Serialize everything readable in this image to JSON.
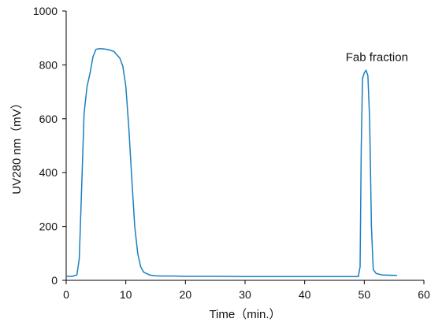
{
  "chart_data": {
    "type": "line",
    "xlabel": "Time（min.）",
    "ylabel": "UV280 nm（mV）",
    "xlim": [
      0,
      60
    ],
    "ylim": [
      0,
      1000
    ],
    "x_ticks": [
      "0",
      "10",
      "20",
      "30",
      "40",
      "50",
      "60"
    ],
    "y_ticks": [
      "0",
      "200",
      "400",
      "600",
      "800",
      "1000"
    ],
    "grid": false,
    "series_color": "#1a7fc1",
    "series": [
      {
        "x": [
          0.0,
          1.0,
          1.8,
          2.2,
          2.6,
          3.0,
          3.5,
          4.0,
          4.5,
          5.0,
          5.5,
          6.0,
          7.0,
          8.0,
          9.0,
          9.5,
          10.0,
          10.5,
          11.0,
          11.5,
          12.0,
          12.5,
          13.0,
          14.0,
          15.0,
          16.0,
          18.0,
          20.0,
          25.0,
          30.0,
          35.0,
          40.0,
          45.0,
          48.0,
          49.0,
          49.3,
          49.5,
          49.7,
          50.0,
          50.3,
          50.6,
          50.9,
          51.2,
          51.5,
          52.0,
          53.0,
          55.5
        ],
        "y": [
          15,
          15,
          20,
          80,
          350,
          620,
          720,
          770,
          830,
          858,
          860,
          860,
          857,
          850,
          825,
          795,
          720,
          570,
          380,
          200,
          100,
          50,
          30,
          20,
          17,
          16,
          16,
          15,
          15,
          14,
          14,
          14,
          14,
          14,
          14,
          50,
          500,
          750,
          770,
          780,
          760,
          600,
          200,
          40,
          25,
          20,
          18
        ]
      }
    ],
    "annotations": [
      {
        "text": "Fab fraction",
        "x": 50,
        "y": 800
      }
    ]
  }
}
